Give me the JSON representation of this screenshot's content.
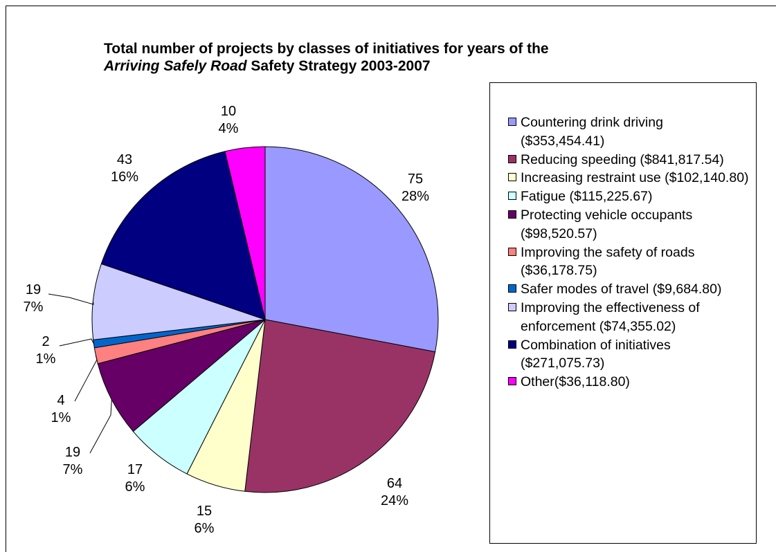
{
  "chart_data": {
    "type": "pie",
    "title": [
      "Total number of projects by classes of initiatives for years of the ",
      "Arriving Safely Road",
      " Safety Strategy 2003-2007"
    ],
    "categories": [
      "Countering drink driving ($353,454.41)",
      "Reducing speeding ($841,817.54)",
      "Increasing restraint use ($102,140.80)",
      "Fatigue ($115,225.67)",
      "Protecting vehicle occupants ($98,520.57)",
      "Improving the safety of roads ($36,178.75)",
      "Safer modes of travel ($9,684.80)",
      "Improving the effectiveness of enforcement ($74,355.02)",
      "Combination of initiatives ($271,075.73)",
      "Other($36,118.80)"
    ],
    "values": [
      75,
      64,
      15,
      17,
      19,
      4,
      2,
      19,
      43,
      10
    ],
    "percent_labels": [
      "28%",
      "24%",
      "6%",
      "6%",
      "7%",
      "1%",
      "1%",
      "7%",
      "16%",
      "4%"
    ],
    "colors": [
      "#9999ff",
      "#993366",
      "#ffffcc",
      "#ccffff",
      "#660066",
      "#ff8080",
      "#0066cc",
      "#ccccff",
      "#000080",
      "#ff00ff"
    ],
    "legend": "right"
  }
}
